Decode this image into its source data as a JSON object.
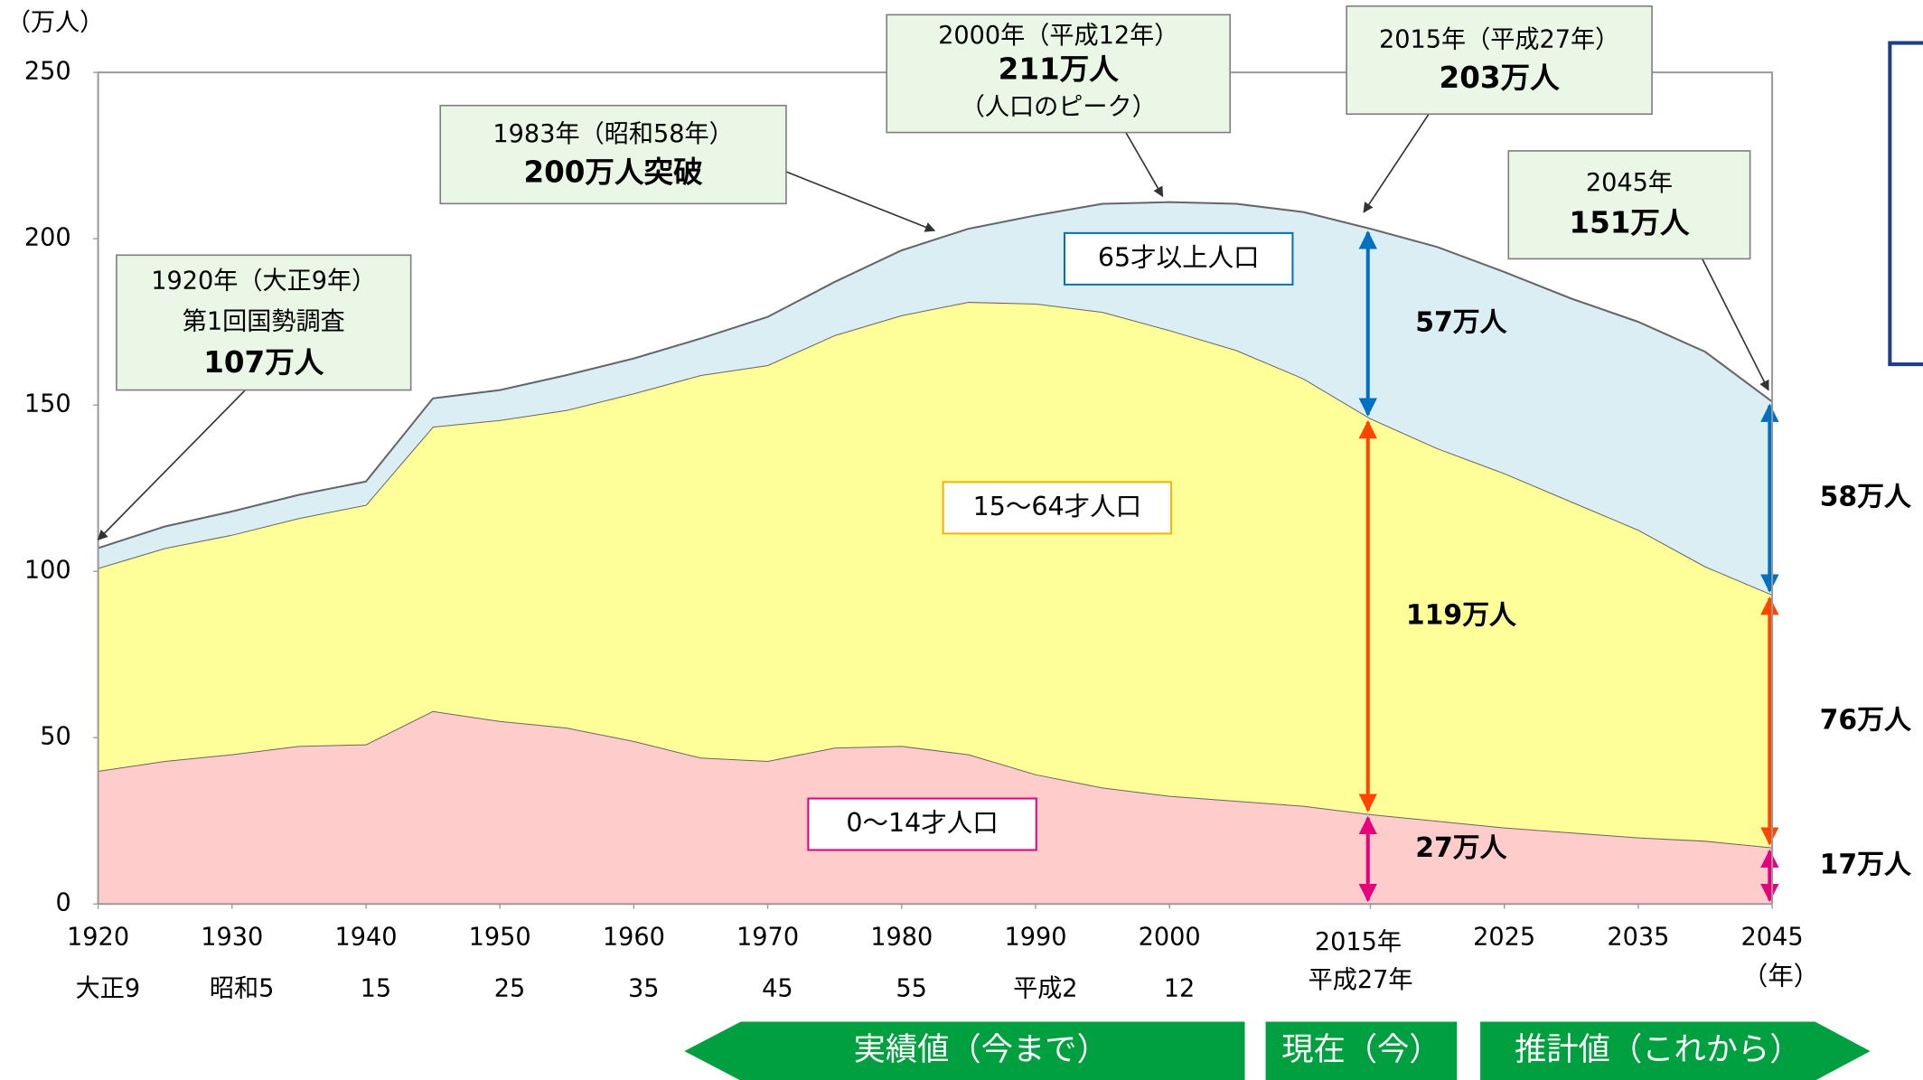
{
  "chart_data": {
    "type": "stacked-area",
    "y_unit_label": "（万人）",
    "x_unit_label": "（年）",
    "x": [
      1920,
      1925,
      1930,
      1935,
      1940,
      1945,
      1950,
      1955,
      1960,
      1965,
      1970,
      1975,
      1980,
      1985,
      1990,
      1995,
      2000,
      2005,
      2010,
      2015,
      2020,
      2025,
      2030,
      2035,
      2040,
      2045
    ],
    "series": [
      {
        "name": "0〜14才人口",
        "color": "#ffcccc",
        "label_border": "#e6007e",
        "arrow_color": "#e6007e",
        "values": [
          40,
          43,
          45,
          47.5,
          48,
          58,
          55,
          53,
          49,
          44,
          43,
          47,
          47.5,
          45,
          39,
          35,
          32.5,
          31,
          29.5,
          27,
          25,
          23,
          21.5,
          20,
          19,
          17
        ],
        "value_labels": [
          null,
          null,
          null,
          null,
          null,
          null,
          null,
          null,
          null,
          null,
          null,
          null,
          null,
          null,
          null,
          null,
          null,
          null,
          null,
          "27万人",
          null,
          null,
          null,
          null,
          null,
          "17万人"
        ]
      },
      {
        "name": "15〜64才人口",
        "color": "#ffff99",
        "label_border": "#f4b400",
        "arrow_color": "#ff4500",
        "values": [
          61,
          64,
          66,
          68.5,
          72,
          85.5,
          90.5,
          95.5,
          104.5,
          115,
          119,
          124,
          129.5,
          136,
          141.5,
          143,
          140,
          135.5,
          128.5,
          119,
          112,
          106.5,
          99.5,
          92.5,
          82.5,
          76
        ],
        "value_labels": [
          null,
          null,
          null,
          null,
          null,
          null,
          null,
          null,
          null,
          null,
          null,
          null,
          null,
          null,
          null,
          null,
          null,
          null,
          null,
          "119万人",
          null,
          null,
          null,
          null,
          null,
          "76万人"
        ]
      },
      {
        "name": "65才以上人口",
        "color": "#dbeef4",
        "label_border": "#0070c0",
        "arrow_color": "#0070c0",
        "values": [
          6,
          6.5,
          7,
          7,
          7,
          8.5,
          9,
          10.5,
          10.5,
          11,
          14.5,
          16,
          19.5,
          22,
          26.5,
          32.5,
          38.5,
          44,
          50,
          57,
          60.5,
          60.5,
          61,
          62.5,
          64.5,
          58
        ],
        "value_labels": [
          null,
          null,
          null,
          null,
          null,
          null,
          null,
          null,
          null,
          null,
          null,
          null,
          null,
          null,
          null,
          null,
          null,
          null,
          null,
          "57万人",
          null,
          null,
          null,
          null,
          null,
          "58万人"
        ]
      }
    ],
    "xlim": [
      1920,
      2045
    ],
    "xticks": [
      1920,
      1930,
      1940,
      1950,
      1960,
      1970,
      1980,
      1990,
      2000,
      {
        "value": 2015,
        "label": "2015年"
      },
      2025,
      2035,
      2045
    ],
    "secondary_xticks": [
      {
        "value": 1920,
        "label": "大正9"
      },
      {
        "value": 1930,
        "label": "昭和5"
      },
      {
        "value": 1940,
        "label": "15"
      },
      {
        "value": 1950,
        "label": "25"
      },
      {
        "value": 1960,
        "label": "35"
      },
      {
        "value": 1970,
        "label": "45"
      },
      {
        "value": 1980,
        "label": "55"
      },
      {
        "value": 1990,
        "label": "平成2"
      },
      {
        "value": 2000,
        "label": "12"
      },
      {
        "value": 2015,
        "label": "平成27年"
      }
    ],
    "ylim": [
      0,
      250
    ],
    "yticks": [
      0,
      50,
      100,
      150,
      200,
      250
    ],
    "grid": false,
    "annotations": [
      {
        "lines": [
          "1920年（大正9年）",
          "第1回国勢調査",
          "107万人"
        ]
      },
      {
        "lines": [
          "1983年（昭和58年）",
          "200万人突破"
        ]
      },
      {
        "lines": [
          "2000年（平成12年）",
          "211万人",
          "（人口のピーク）"
        ]
      },
      {
        "lines": [
          "2015年（平成27年）",
          "203万人"
        ]
      },
      {
        "lines": [
          "2045年",
          "151万人"
        ]
      }
    ],
    "period_labels": [
      "実績値（今まで）",
      "現在（今）",
      "推計値（これから）"
    ]
  }
}
